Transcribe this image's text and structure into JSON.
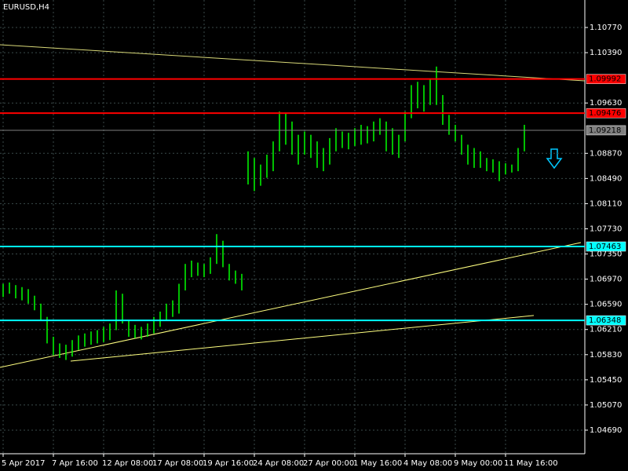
{
  "chart_data": {
    "type": "range-bar",
    "title": "EURUSD,H4",
    "ylim": [
      1.04334,
      1.11185
    ],
    "yticks": [
      {
        "value": 1.1077,
        "label": "1.10770"
      },
      {
        "value": 1.1039,
        "label": "1.10390"
      },
      {
        "value": 1.0963,
        "label": "1.09630"
      },
      {
        "value": 1.0887,
        "label": "1.08870"
      },
      {
        "value": 1.0849,
        "label": "1.08490"
      },
      {
        "value": 1.0811,
        "label": "1.08110"
      },
      {
        "value": 1.0773,
        "label": "1.07730"
      },
      {
        "value": 1.0735,
        "label": "1.07350"
      },
      {
        "value": 1.0697,
        "label": "1.06970"
      },
      {
        "value": 1.0659,
        "label": "1.06590"
      },
      {
        "value": 1.0621,
        "label": "1.06210"
      },
      {
        "value": 1.0583,
        "label": "1.05830"
      },
      {
        "value": 1.0545,
        "label": "1.05450"
      },
      {
        "value": 1.0507,
        "label": "1.05070"
      },
      {
        "value": 1.0469,
        "label": "1.04690"
      }
    ],
    "grid": true,
    "categories": [
      "5 Apr 2017",
      null,
      null,
      null,
      null,
      null,
      null,
      null,
      "7 Apr 16:00",
      null,
      null,
      null,
      null,
      null,
      null,
      null,
      "12 Apr 08:00",
      null,
      null,
      null,
      null,
      null,
      null,
      null,
      "17 Apr 08:00",
      null,
      null,
      null,
      null,
      null,
      null,
      null,
      "19 Apr 16:00",
      null,
      null,
      null,
      null,
      null,
      null,
      null,
      "24 Apr 08:00",
      null,
      null,
      null,
      null,
      null,
      null,
      null,
      "27 Apr 00:00",
      null,
      null,
      null,
      null,
      null,
      null,
      null,
      "1 May 16:00",
      null,
      null,
      null,
      null,
      null,
      null,
      null,
      "4 May 08:00",
      null,
      null,
      null,
      null,
      null,
      null,
      null,
      "9 May 00:00",
      null,
      null,
      null,
      null,
      null,
      null,
      null,
      "11 May 16:00",
      null,
      null,
      null
    ],
    "color": "#00ff00",
    "high": [
      1.069,
      1.0692,
      1.0688,
      1.0685,
      1.0682,
      1.0672,
      1.066,
      1.064,
      1.061,
      1.06,
      1.0598,
      1.0605,
      1.0612,
      1.0615,
      1.0618,
      1.062,
      1.0625,
      1.063,
      1.068,
      1.0675,
      1.0635,
      1.0628,
      1.0625,
      1.063,
      1.064,
      1.0648,
      1.066,
      1.0665,
      1.069,
      1.072,
      1.0725,
      1.0722,
      1.072,
      1.073,
      1.0765,
      1.0755,
      1.072,
      1.071,
      1.0705,
      1.089,
      1.088,
      1.087,
      1.0885,
      1.0905,
      1.095,
      1.0948,
      1.0935,
      1.0915,
      1.092,
      1.0915,
      1.0905,
      1.0895,
      1.091,
      1.0925,
      1.092,
      1.0918,
      1.0925,
      1.093,
      1.0928,
      1.0935,
      1.094,
      1.0935,
      1.0925,
      1.0915,
      1.095,
      1.099,
      1.0995,
      1.099,
      1.1,
      1.1018,
      1.0975,
      1.0945,
      1.093,
      1.0915,
      1.09,
      1.0895,
      1.089,
      1.088,
      1.0878,
      1.0875,
      1.0872,
      1.087,
      1.0895,
      1.093
    ],
    "low": [
      1.067,
      1.0675,
      1.0668,
      1.0665,
      1.066,
      1.065,
      1.0635,
      1.06,
      1.0582,
      1.0578,
      1.0575,
      1.058,
      1.059,
      1.0595,
      1.0598,
      1.06,
      1.0602,
      1.0605,
      1.062,
      1.063,
      1.061,
      1.0608,
      1.0606,
      1.061,
      1.0615,
      1.0625,
      1.0635,
      1.064,
      1.0645,
      1.068,
      1.07,
      1.0702,
      1.07,
      1.0705,
      1.072,
      1.0715,
      1.0695,
      1.069,
      1.068,
      1.084,
      1.083,
      1.0838,
      1.085,
      1.086,
      1.089,
      1.09,
      1.0885,
      1.087,
      1.0885,
      1.088,
      1.0865,
      1.086,
      1.087,
      1.089,
      1.0895,
      1.0893,
      1.0898,
      1.09,
      1.0902,
      1.0905,
      1.0915,
      1.089,
      1.0885,
      1.088,
      1.0905,
      1.094,
      1.0955,
      1.095,
      1.096,
      1.096,
      1.093,
      1.0915,
      1.0905,
      1.0885,
      1.087,
      1.0865,
      1.0865,
      1.086,
      1.0858,
      1.0845,
      1.0855,
      1.0858,
      1.086,
      1.089
    ],
    "levels": [
      {
        "value": 1.09992,
        "color": "#ff0000"
      },
      {
        "value": 1.09476,
        "color": "#ff0000"
      },
      {
        "value": 1.09218,
        "color": "#808080"
      },
      {
        "value": 1.07463,
        "color": "#00ffff"
      },
      {
        "value": 1.06348,
        "color": "#00ffff"
      }
    ],
    "trendlines": [
      {
        "color": "#d8d878",
        "from": [
          -0.5,
          1.10509
        ],
        "to": [
          92.6,
          1.09964
        ]
      },
      {
        "color": "#ffff80",
        "from": [
          -0.5,
          1.05638
        ],
        "to": [
          92,
          1.07523
        ]
      },
      {
        "color": "#ffff80",
        "from": [
          10.75,
          1.05733
        ],
        "to": [
          84.5,
          1.06421
        ]
      }
    ]
  }
}
